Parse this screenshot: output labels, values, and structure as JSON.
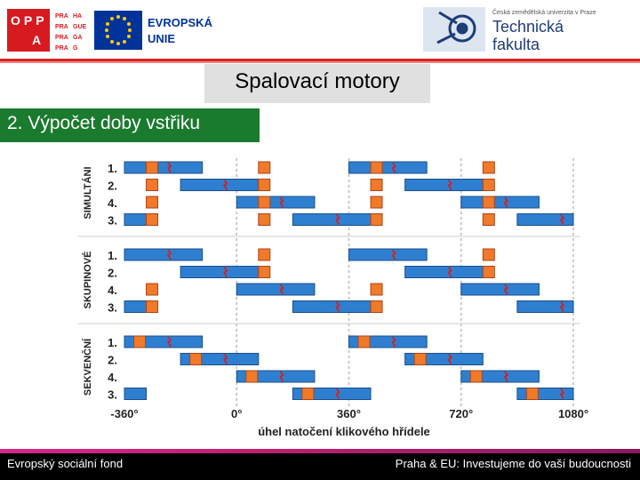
{
  "header": {
    "left_logo": {
      "opp_letters": [
        "O",
        "P",
        "P",
        "A"
      ],
      "praha_grid": [
        "PRA",
        "HA",
        "PRA",
        "GUE",
        "PRA",
        "GA",
        "PRA",
        "G"
      ],
      "eu_text_line1": "EVROPSKÁ",
      "eu_text_line2": "UNIE"
    },
    "right_logo": {
      "university": "Česká zemědělská univerzita v Praze",
      "line1": "Technická",
      "line2": "fakulta"
    }
  },
  "slide": {
    "title": "Spalovací motory",
    "subtitle": "2. Výpočet doby vstřiku"
  },
  "diagram": {
    "groups": [
      {
        "label": "SIMULTÁNI",
        "cylinders": [
          "1.",
          "2.",
          "4.",
          "3."
        ]
      },
      {
        "label": "SKUPINOVÉ",
        "cylinders": [
          "1.",
          "2.",
          "4.",
          "3."
        ]
      },
      {
        "label": "SEKVENČNÍ",
        "cylinders": [
          "1.",
          "2.",
          "4.",
          "3."
        ]
      }
    ],
    "x_ticks": [
      "-360°",
      "0°",
      "360°",
      "720°",
      "1080°"
    ],
    "x_axis_label": "úhel natočení klikového hřídele",
    "colors": {
      "intake_bar": "#2f7fd0",
      "injection": "#f07a2a",
      "spark": "#d81e1e",
      "grid": "#bbbbbb"
    }
  },
  "footer": {
    "left": "Evropský sociální fond",
    "right": "Praha & EU: Investujeme do vaší budoucnosti"
  }
}
